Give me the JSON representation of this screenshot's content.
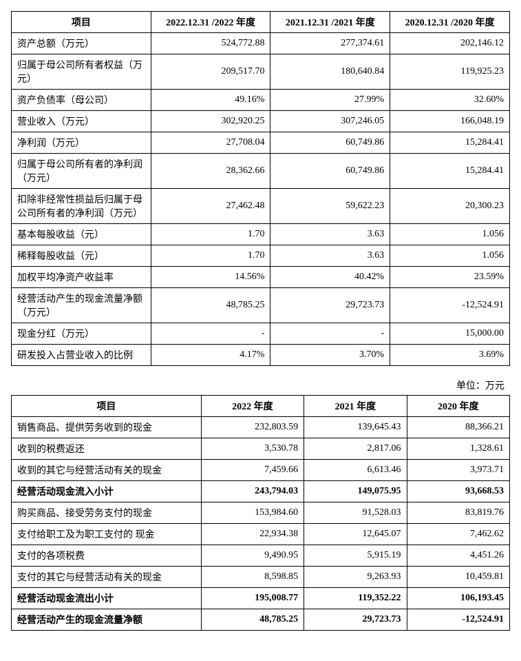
{
  "table1": {
    "headers": [
      "项目",
      "2022.12.31\n/2022 年度",
      "2021.12.31\n/2021 年度",
      "2020.12.31\n/2020 年度"
    ],
    "rows": [
      {
        "label": "资产总额（万元）",
        "v": [
          "524,772.88",
          "277,374.61",
          "202,146.12"
        ],
        "bold": false
      },
      {
        "label": "归属于母公司所有者权益（万元）",
        "v": [
          "209,517.70",
          "180,640.84",
          "119,925.23"
        ],
        "bold": false
      },
      {
        "label": "资产负债率（母公司）",
        "v": [
          "49.16%",
          "27.99%",
          "32.60%"
        ],
        "bold": false
      },
      {
        "label": "营业收入（万元）",
        "v": [
          "302,920.25",
          "307,246.05",
          "166,048.19"
        ],
        "bold": false
      },
      {
        "label": "净利润（万元）",
        "v": [
          "27,708.04",
          "60,749.86",
          "15,284.41"
        ],
        "bold": false
      },
      {
        "label": "归属于母公司所有者的净利润（万元）",
        "v": [
          "28,362.66",
          "60,749.86",
          "15,284.41"
        ],
        "bold": false
      },
      {
        "label": "扣除非经常性损益后归属于母公司所有者的净利润（万元）",
        "v": [
          "27,462.48",
          "59,622.23",
          "20,300.23"
        ],
        "bold": false
      },
      {
        "label": "基本每股收益（元）",
        "v": [
          "1.70",
          "3.63",
          "1.056"
        ],
        "bold": false
      },
      {
        "label": "稀释每股收益（元）",
        "v": [
          "1.70",
          "3.63",
          "1.056"
        ],
        "bold": false
      },
      {
        "label": "加权平均净资产收益率",
        "v": [
          "14.56%",
          "40.42%",
          "23.59%"
        ],
        "bold": false
      },
      {
        "label": "经营活动产生的现金流量净额（万元）",
        "v": [
          "48,785.25",
          "29,723.73",
          "-12,524.91"
        ],
        "bold": false
      },
      {
        "label": "现金分红（万元）",
        "v": [
          "-",
          "-",
          "15,000.00"
        ],
        "bold": false
      },
      {
        "label": "研发投入占营业收入的比例",
        "v": [
          "4.17%",
          "3.70%",
          "3.69%"
        ],
        "bold": false
      }
    ]
  },
  "unit_text": "单位：万元",
  "table2": {
    "headers": [
      "项目",
      "2022 年度",
      "2021 年度",
      "2020 年度"
    ],
    "rows": [
      {
        "label": "销售商品、提供劳务收到的现金",
        "v": [
          "232,803.59",
          "139,645.43",
          "88,366.21"
        ],
        "bold": false
      },
      {
        "label": "收到的税费返还",
        "v": [
          "3,530.78",
          "2,817.06",
          "1,328.61"
        ],
        "bold": false
      },
      {
        "label": "收到的其它与经营活动有关的现金",
        "v": [
          "7,459.66",
          "6,613.46",
          "3,973.71"
        ],
        "bold": false
      },
      {
        "label": "经营活动现金流入小计",
        "v": [
          "243,794.03",
          "149,075.95",
          "93,668.53"
        ],
        "bold": true
      },
      {
        "label": "购买商品、接受劳务支付的现金",
        "v": [
          "153,984.60",
          "91,528.03",
          "83,819.76"
        ],
        "bold": false
      },
      {
        "label": "支付给职工及为职工支付的\n现金",
        "v": [
          "22,934.38",
          "12,645.07",
          "7,462.62"
        ],
        "bold": false
      },
      {
        "label": "支付的各项税费",
        "v": [
          "9,490.95",
          "5,915.19",
          "4,451.26"
        ],
        "bold": false
      },
      {
        "label": "支付的其它与经营活动有关的现金",
        "v": [
          "8,598.85",
          "9,263.93",
          "10,459.81"
        ],
        "bold": false
      },
      {
        "label": "经营活动现金流出小计",
        "v": [
          "195,008.77",
          "119,352.22",
          "106,193.45"
        ],
        "bold": true
      },
      {
        "label": "经营活动产生的现金流量净额",
        "v": [
          "48,785.25",
          "29,723.73",
          "-12,524.91"
        ],
        "bold": true
      }
    ]
  }
}
